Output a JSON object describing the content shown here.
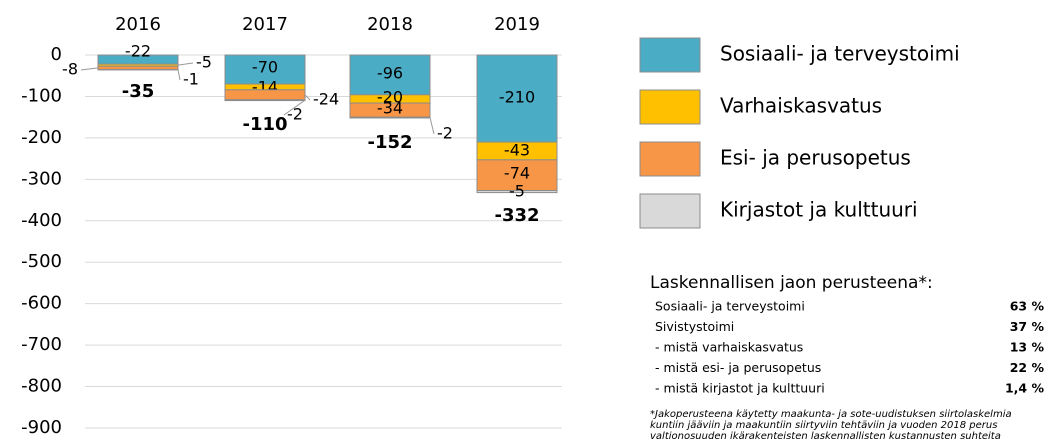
{
  "chart_data": {
    "type": "stacked_bar",
    "categories": [
      "2016",
      "2017",
      "2018",
      "2019"
    ],
    "series": [
      {
        "name": "Sosiaali- ja terveystoimi",
        "color": "#4bacc6",
        "values": [
          -22,
          -70,
          -96,
          -210
        ]
      },
      {
        "name": "Varhaiskasvatus",
        "color": "#ffc000",
        "values": [
          -5,
          -14,
          -20,
          -43
        ]
      },
      {
        "name": "Esi- ja perusopetus",
        "color": "#f79646",
        "values": [
          -8,
          -24,
          -34,
          -74
        ]
      },
      {
        "name": "Kirjastot ja kulttuuri",
        "color": "#d9d9d9",
        "values": [
          -1,
          -2,
          -2,
          -5
        ]
      }
    ],
    "totals": [
      -35,
      -110,
      -152,
      -332
    ],
    "ylim": [
      -900,
      0
    ],
    "yticks": [
      0,
      -100,
      -200,
      -300,
      -400,
      -500,
      -600,
      -700,
      -800,
      -900
    ],
    "grid": true,
    "notes": {
      "title": "Laskennallisen jaon perusteena*:",
      "rows": [
        [
          "Sosiaali- ja terveystoimi",
          "63 %"
        ],
        [
          "Sivistystoimi",
          "37 %"
        ],
        [
          " - mistä varhaiskasvatus",
          "13 %"
        ],
        [
          " - mistä esi- ja perusopetus",
          "22 %"
        ],
        [
          " - mistä kirjastot ja kulttuuri",
          "1,4 %"
        ]
      ],
      "footnote": [
        "*Jakoperusteena käytetty maakunta- ja sote-uudistuksen siirtolaskelmia",
        "kuntiin jääviin ja maakuntiin siirtyviin tehtäviin ja vuoden 2018 perus",
        "valtionosuuden ikärakenteisten laskennallisten kustannusten suhteita"
      ]
    }
  }
}
